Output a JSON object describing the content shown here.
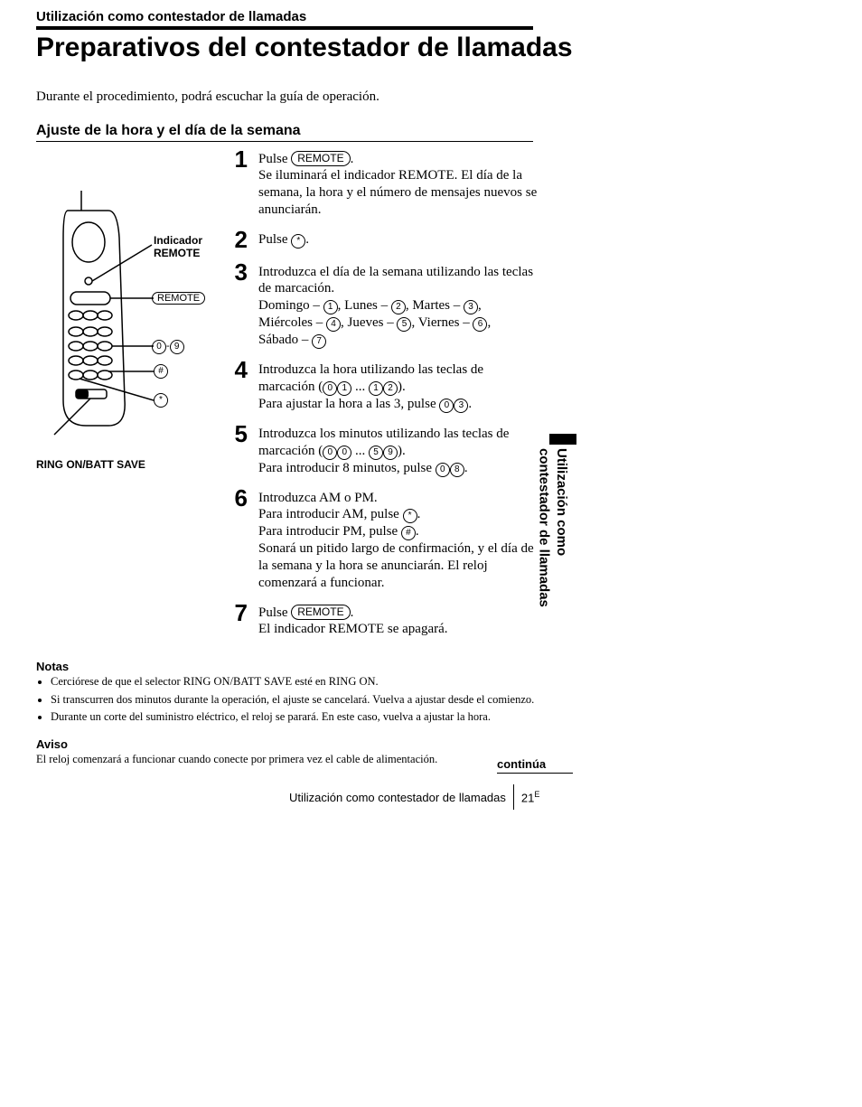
{
  "section_header": "Utilización como contestador de llamadas",
  "main_title": "Preparativos del contestador de llamadas",
  "intro": "Durante el procedimiento, podrá escuchar la guía de operación.",
  "subtitle": "Ajuste de la hora y el día de la semana",
  "diagram": {
    "indicator_label_1": "Indicador",
    "indicator_label_2": "REMOTE",
    "remote_btn": "REMOTE",
    "range_0": "0",
    "range_dash": "-",
    "range_9": "9",
    "hash": "#",
    "star": "*",
    "bottom_label": "RING ON/BATT SAVE"
  },
  "steps": [
    {
      "num": "1",
      "pre": "Pulse ",
      "btn": "REMOTE",
      "post": ".",
      "body": "Se iluminará el indicador REMOTE. El día de la semana, la hora y el número de mensajes nuevos se anunciarán."
    },
    {
      "num": "2",
      "pre": "Pulse ",
      "key": "*",
      "post": "."
    },
    {
      "num": "3",
      "body_a": "Introduzca el día de la semana utilizando las teclas de marcación.",
      "days": [
        {
          "name": "Domingo",
          "k": "1"
        },
        {
          "name": "Lunes",
          "k": "2"
        },
        {
          "name": "Martes",
          "k": "3"
        },
        {
          "name": "Miércoles",
          "k": "4"
        },
        {
          "name": "Jueves",
          "k": "5"
        },
        {
          "name": "Viernes",
          "k": "6"
        },
        {
          "name": "Sábado",
          "k": "7"
        }
      ]
    },
    {
      "num": "4",
      "body_a": "Introduzca la hora utilizando las teclas de marcación (",
      "rk": [
        "0",
        "1",
        "1",
        "2"
      ],
      "body_b": ").",
      "body_c": "Para ajustar la hora a las 3, pulse ",
      "ek": [
        "0",
        "3"
      ],
      "body_d": "."
    },
    {
      "num": "5",
      "body_a": "Introduzca los minutos utilizando las teclas de marcación (",
      "rk": [
        "0",
        "0",
        "5",
        "9"
      ],
      "body_b": ").",
      "body_c": "Para introducir 8 minutos, pulse ",
      "ek": [
        "0",
        "8"
      ],
      "body_d": "."
    },
    {
      "num": "6",
      "body_a": "Introduzca AM o PM.",
      "am_pre": "Para introducir AM, pulse ",
      "am_key": "*",
      "pm_pre": "Para introducir PM, pulse ",
      "pm_key": "#",
      "body_b": "Sonará un pitido largo de confirmación, y el día de la semana y la hora se anunciarán. El reloj comenzará a funcionar."
    },
    {
      "num": "7",
      "pre": "Pulse ",
      "btn": "REMOTE",
      "post": ".",
      "body": "El indicador REMOTE se apagará."
    }
  ],
  "notes_title": "Notas",
  "notes": [
    "Cerciórese de que el selector RING ON/BATT SAVE esté en RING ON.",
    "Si transcurren dos minutos durante la operación, el ajuste se cancelará. Vuelva a ajustar desde el comienzo.",
    "Durante un corte del suministro eléctrico, el reloj se parará. En este caso, vuelva a ajustar la hora."
  ],
  "aviso_title": "Aviso",
  "aviso_body": "El reloj comenzará a funcionar cuando conecte por primera vez el cable de alimentación.",
  "continua": "continúa",
  "footer_text": "Utilización como contestador de llamadas",
  "footer_page": "21",
  "footer_sup": "E",
  "side_tab_l1": "Utilización como",
  "side_tab_l2": "contestador de llamadas"
}
